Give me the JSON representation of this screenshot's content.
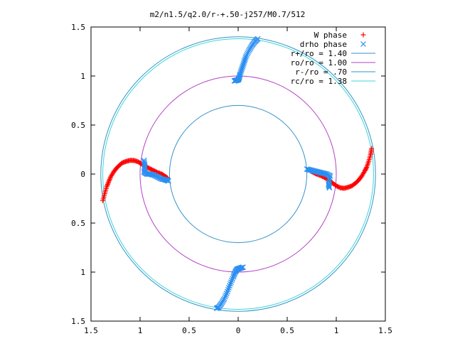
{
  "chart_data": {
    "type": "scatter",
    "title": "m2/n1.5/q2.0/r-+.50-j257/M0.7/512",
    "xlabel": "",
    "ylabel": "",
    "xlim": [
      -1.5,
      1.5
    ],
    "ylim": [
      -1.5,
      1.5
    ],
    "xticks": [
      -1.5,
      -1,
      -0.5,
      0,
      0.5,
      1,
      1.5
    ],
    "yticks": [
      -1.5,
      -1,
      -0.5,
      0,
      0.5,
      1,
      1.5
    ],
    "xtick_labels": [
      "1.5",
      "1",
      "0.5",
      "0",
      "0.5",
      "1",
      "1.5"
    ],
    "ytick_labels": [
      "1.5",
      "1",
      "0.5",
      "0",
      "0.5",
      "1",
      "1.5"
    ],
    "grid": false,
    "legend_position": "top-right",
    "circles": [
      {
        "label": "r+/ro = 1.40",
        "radius": 1.4,
        "color": "#3592c9"
      },
      {
        "label": "ro/ro = 1.00",
        "radius": 1.0,
        "color": "#b341c4"
      },
      {
        "label": "r-/ro = .70",
        "radius": 0.7,
        "color": "#3592c9"
      },
      {
        "label": "rc/ro = 1.38",
        "radius": 1.38,
        "color": "#3fd6d6"
      }
    ],
    "series": [
      {
        "name": "W phase",
        "marker": "+",
        "color": "#ff0000",
        "points": [
          [
            -1.38,
            -0.27
          ],
          [
            -1.36,
            -0.2
          ],
          [
            -1.34,
            -0.13
          ],
          [
            -1.32,
            -0.08
          ],
          [
            -1.3,
            -0.03
          ],
          [
            -1.27,
            0.02
          ],
          [
            -1.24,
            0.06
          ],
          [
            -1.21,
            0.09
          ],
          [
            -1.18,
            0.115
          ],
          [
            -1.14,
            0.13
          ],
          [
            -1.1,
            0.14
          ],
          [
            -1.06,
            0.138
          ],
          [
            -1.02,
            0.125
          ],
          [
            -0.98,
            0.1
          ],
          [
            -0.94,
            0.075
          ],
          [
            -0.9,
            0.055
          ],
          [
            -0.86,
            0.035
          ],
          [
            -0.82,
            0.015
          ],
          [
            -0.78,
            0.0
          ],
          [
            -0.75,
            -0.02
          ],
          [
            -0.72,
            -0.04
          ],
          [
            1.36,
            0.26
          ],
          [
            1.35,
            0.2
          ],
          [
            1.33,
            0.13
          ],
          [
            1.31,
            0.07
          ],
          [
            1.29,
            0.03
          ],
          [
            1.26,
            -0.02
          ],
          [
            1.23,
            -0.06
          ],
          [
            1.2,
            -0.09
          ],
          [
            1.16,
            -0.12
          ],
          [
            1.12,
            -0.135
          ],
          [
            1.08,
            -0.145
          ],
          [
            1.04,
            -0.14
          ],
          [
            1.0,
            -0.12
          ],
          [
            0.96,
            -0.09
          ],
          [
            0.92,
            -0.06
          ],
          [
            0.88,
            -0.035
          ],
          [
            0.84,
            -0.015
          ],
          [
            0.8,
            0.0
          ],
          [
            0.77,
            0.015
          ],
          [
            0.74,
            0.03
          ]
        ]
      },
      {
        "name": "drho phase",
        "marker": "x",
        "color": "#2a8ff2",
        "points": [
          [
            -0.96,
            0.14
          ],
          [
            -0.95,
            0.08
          ],
          [
            -0.96,
            0.02
          ],
          [
            -0.93,
            0.0
          ],
          [
            -0.9,
            0.0
          ],
          [
            -0.86,
            -0.01
          ],
          [
            -0.82,
            -0.03
          ],
          [
            -0.78,
            -0.05
          ],
          [
            -0.74,
            -0.06
          ],
          [
            -0.71,
            -0.07
          ],
          [
            -0.04,
            0.95
          ],
          [
            -0.02,
            0.955
          ],
          [
            0.0,
            0.96
          ],
          [
            0.01,
            0.98
          ],
          [
            0.02,
            1.02
          ],
          [
            0.04,
            1.08
          ],
          [
            0.06,
            1.14
          ],
          [
            0.08,
            1.2
          ],
          [
            0.11,
            1.26
          ],
          [
            0.14,
            1.31
          ],
          [
            0.17,
            1.35
          ],
          [
            0.2,
            1.38
          ],
          [
            0.7,
            0.05
          ],
          [
            0.74,
            0.04
          ],
          [
            0.78,
            0.03
          ],
          [
            0.82,
            0.02
          ],
          [
            0.86,
            0.01
          ],
          [
            0.9,
            0.0
          ],
          [
            0.94,
            -0.02
          ],
          [
            0.92,
            -0.1
          ],
          [
            0.93,
            -0.14
          ],
          [
            0.05,
            -0.95
          ],
          [
            0.02,
            -0.96
          ],
          [
            -0.01,
            -0.97
          ],
          [
            -0.03,
            -1.0
          ],
          [
            -0.05,
            -1.05
          ],
          [
            -0.08,
            -1.12
          ],
          [
            -0.11,
            -1.2
          ],
          [
            -0.14,
            -1.27
          ],
          [
            -0.17,
            -1.32
          ],
          [
            -0.2,
            -1.36
          ],
          [
            -0.22,
            -1.37
          ]
        ]
      }
    ]
  }
}
